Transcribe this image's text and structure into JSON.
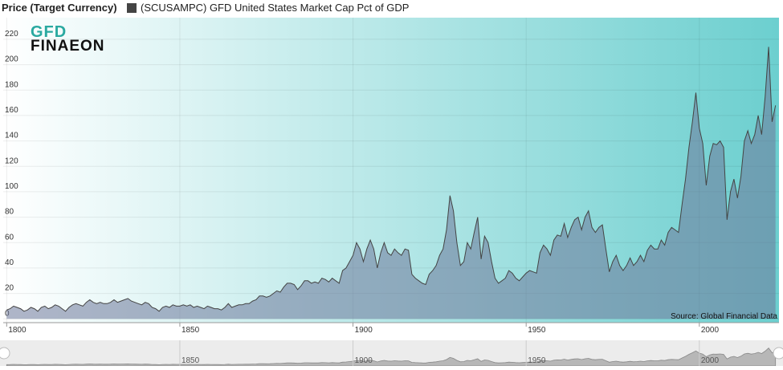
{
  "chart_data": {
    "type": "area",
    "ylabel": "Price (Target Currency)",
    "source": "Source: Global Financial Data",
    "logo": {
      "top": "GFD",
      "bottom": "FINAEON"
    },
    "grid": true,
    "xlim": [
      1799,
      2023
    ],
    "xticks": [
      1800,
      1850,
      1900,
      1950,
      2000
    ],
    "ylim": [
      -3,
      237
    ],
    "yticks": [
      0,
      20,
      40,
      60,
      80,
      100,
      120,
      140,
      160,
      180,
      200,
      220
    ],
    "navigator": {
      "xticks": [
        1850,
        1900,
        1950,
        2000
      ]
    },
    "x": [
      1800,
      1801,
      1802,
      1803,
      1804,
      1805,
      1806,
      1807,
      1808,
      1809,
      1810,
      1811,
      1812,
      1813,
      1814,
      1815,
      1816,
      1817,
      1818,
      1819,
      1820,
      1821,
      1822,
      1823,
      1824,
      1825,
      1826,
      1827,
      1828,
      1829,
      1830,
      1831,
      1832,
      1833,
      1834,
      1835,
      1836,
      1837,
      1838,
      1839,
      1840,
      1841,
      1842,
      1843,
      1844,
      1845,
      1846,
      1847,
      1848,
      1849,
      1850,
      1851,
      1852,
      1853,
      1854,
      1855,
      1856,
      1857,
      1858,
      1859,
      1860,
      1861,
      1862,
      1863,
      1864,
      1865,
      1866,
      1867,
      1868,
      1869,
      1870,
      1871,
      1872,
      1873,
      1874,
      1875,
      1876,
      1877,
      1878,
      1879,
      1880,
      1881,
      1882,
      1883,
      1884,
      1885,
      1886,
      1887,
      1888,
      1889,
      1890,
      1891,
      1892,
      1893,
      1894,
      1895,
      1896,
      1897,
      1898,
      1899,
      1900,
      1901,
      1902,
      1903,
      1904,
      1905,
      1906,
      1907,
      1908,
      1909,
      1910,
      1911,
      1912,
      1913,
      1914,
      1915,
      1916,
      1917,
      1918,
      1919,
      1920,
      1921,
      1922,
      1923,
      1924,
      1925,
      1926,
      1927,
      1928,
      1929,
      1930,
      1931,
      1932,
      1933,
      1934,
      1935,
      1936,
      1937,
      1938,
      1939,
      1940,
      1941,
      1942,
      1943,
      1944,
      1945,
      1946,
      1947,
      1948,
      1949,
      1950,
      1951,
      1952,
      1953,
      1954,
      1955,
      1956,
      1957,
      1958,
      1959,
      1960,
      1961,
      1962,
      1963,
      1964,
      1965,
      1966,
      1967,
      1968,
      1969,
      1970,
      1971,
      1972,
      1973,
      1974,
      1975,
      1976,
      1977,
      1978,
      1979,
      1980,
      1981,
      1982,
      1983,
      1984,
      1985,
      1986,
      1987,
      1988,
      1989,
      1990,
      1991,
      1992,
      1993,
      1994,
      1995,
      1996,
      1997,
      1998,
      1999,
      2000,
      2001,
      2002,
      2003,
      2004,
      2005,
      2006,
      2007,
      2008,
      2009,
      2010,
      2011,
      2012,
      2013,
      2014,
      2015,
      2016,
      2017,
      2018,
      2019,
      2020,
      2021,
      2022
    ],
    "series": [
      {
        "name": "(SCUSAMPC) GFD United States Market Cap Pct of GDP",
        "color": "#444444",
        "values": [
          7,
          8,
          10,
          9,
          8,
          6,
          7,
          9,
          8,
          6,
          9,
          10,
          8,
          9,
          11,
          10,
          8,
          6,
          9,
          11,
          12,
          11,
          10,
          13,
          15,
          13,
          12,
          13,
          12,
          12,
          13,
          15,
          13,
          14,
          15,
          16,
          14,
          13,
          12,
          11,
          13,
          12,
          9,
          8,
          6,
          9,
          10,
          9,
          11,
          10,
          10,
          11,
          10,
          11,
          9,
          10,
          9,
          8,
          10,
          9,
          8,
          8,
          7,
          9,
          12,
          9,
          10,
          11,
          11,
          12,
          12,
          14,
          15,
          18,
          18,
          17,
          18,
          20,
          22,
          21,
          25,
          28,
          28,
          27,
          23,
          26,
          30,
          30,
          28,
          29,
          28,
          32,
          31,
          29,
          32,
          30,
          28,
          38,
          40,
          45,
          50,
          60,
          55,
          45,
          55,
          62,
          55,
          40,
          52,
          60,
          52,
          50,
          55,
          52,
          50,
          55,
          54,
          35,
          32,
          30,
          28,
          27,
          35,
          38,
          42,
          50,
          55,
          70,
          97,
          85,
          60,
          42,
          45,
          60,
          55,
          68,
          80,
          47,
          65,
          60,
          45,
          32,
          28,
          30,
          32,
          38,
          36,
          32,
          30,
          33,
          36,
          38,
          37,
          36,
          52,
          58,
          55,
          50,
          62,
          66,
          65,
          75,
          64,
          72,
          78,
          80,
          70,
          80,
          85,
          72,
          68,
          72,
          74,
          55,
          37,
          45,
          50,
          42,
          38,
          42,
          48,
          42,
          45,
          50,
          45,
          54,
          58,
          55,
          55,
          62,
          58,
          68,
          72,
          70,
          68,
          90,
          110,
          135,
          155,
          178,
          150,
          138,
          105,
          128,
          138,
          137,
          140,
          135,
          78,
          100,
          110,
          95,
          112,
          140,
          148,
          138,
          145,
          160,
          145,
          175,
          214,
          155,
          168
        ]
      }
    ]
  }
}
